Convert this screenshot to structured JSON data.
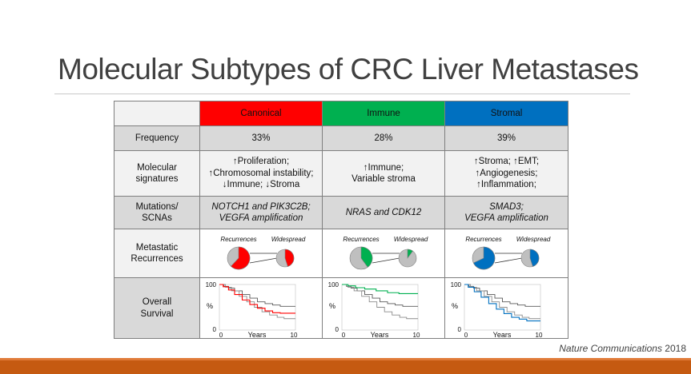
{
  "title": "Molecular Subtypes of CRC Liver Metastases",
  "colors": {
    "canonical": "#ff0000",
    "immune": "#00b050",
    "stromal": "#0070c0"
  },
  "columns": [
    "Canonical",
    "Immune",
    "Stromal"
  ],
  "rows": {
    "frequency": {
      "label": "Frequency",
      "values": [
        "33%",
        "28%",
        "39%"
      ]
    },
    "signatures": {
      "label_line1": "Molecular",
      "label_line2": "signatures",
      "canonical": [
        "↑Proliferation;",
        "↑Chromosomal instability;",
        "↓Immune; ↓Stroma"
      ],
      "immune": [
        "↑Immune;",
        "Variable stroma"
      ],
      "stromal": [
        "↑Stroma; ↑EMT;",
        "↑Angiogenesis;",
        "↑Inflammation;"
      ]
    },
    "mutations": {
      "label_line1": "Mutations/",
      "label_line2": "SCNAs",
      "canonical": [
        "NOTCH1 and PIK3C2B;",
        "VEGFA amplification"
      ],
      "immune": [
        "NRAS and CDK12"
      ],
      "stromal": [
        "SMAD3;",
        "VEGFA amplification"
      ]
    },
    "recurrences": {
      "label_line1": "Metastatic",
      "label_line2": "Recurrences",
      "pie_label_left": "Recurrences",
      "pie_label_right": "Widespread",
      "recurrence_fraction": [
        0.62,
        0.4,
        0.68
      ],
      "widespread_fraction": [
        0.45,
        0.1,
        0.45
      ]
    },
    "survival": {
      "label_line1": "Overall",
      "label_line2": "Survival",
      "y_top": "100",
      "y_bottom": "0",
      "y_label": "%",
      "x_left": "0",
      "x_right": "10",
      "x_label": "Years"
    }
  },
  "citation": {
    "journal": "Nature Communications",
    "year": "2018"
  }
}
